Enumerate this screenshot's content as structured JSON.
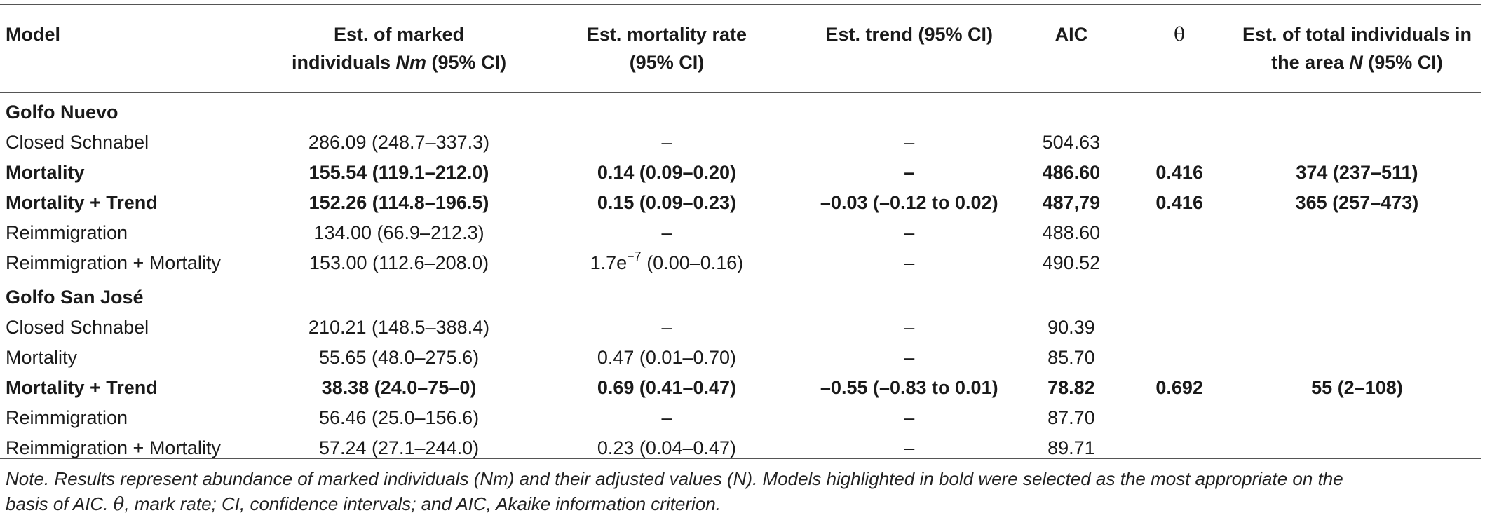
{
  "headers": {
    "model": "Model",
    "nm_line1": "Est. of marked",
    "nm_line2a": "individuals ",
    "nm_line2b": "Nm",
    "nm_line2c": " (95% CI)",
    "mort_line1": "Est. mortality rate",
    "mort_line2": "(95% CI)",
    "trend": "Est. trend (95% CI)",
    "aic": "AIC",
    "theta": "θ",
    "total_line1": "Est. of total individuals in",
    "total_line2a": "the area ",
    "total_line2b": "N",
    "total_line2c": " (95% CI)"
  },
  "groups": [
    {
      "name": "Golfo Nuevo",
      "rows": [
        {
          "model": "Closed Schnabel",
          "nm": "286.09 (248.7–337.3)",
          "mort": "–",
          "trend": "–",
          "aic": "504.63",
          "theta": "",
          "total": ""
        },
        {
          "model": "Mortality",
          "nm": "155.54 (119.1–212.0)",
          "mort": "0.14 (0.09–0.20)",
          "trend": "–",
          "aic": "486.60",
          "theta": "0.416",
          "total": "374 (237–511)"
        },
        {
          "model": "Mortality + Trend",
          "nm": "152.26 (114.8–196.5)",
          "mort": "0.15 (0.09–0.23)",
          "trend": "–0.03 (–0.12 to 0.02)",
          "aic": "487,79",
          "theta": "0.416",
          "total": "365 (257–473)"
        },
        {
          "model": "Reimmigration",
          "nm": "134.00 (66.9–212.3)",
          "mort": "–",
          "trend": "–",
          "aic": "488.60",
          "theta": "",
          "total": ""
        },
        {
          "model": "Reimmigration + Mortality",
          "nm": "153.00 (112.6–208.0)",
          "mort_base": "1.7e",
          "mort_sup": "−7",
          "mort_rest": " (0.00–0.16)",
          "trend": "–",
          "aic": "490.52",
          "theta": "",
          "total": ""
        }
      ]
    },
    {
      "name": "Golfo San José",
      "rows": [
        {
          "model": "Closed Schnabel",
          "nm": "210.21 (148.5–388.4)",
          "mort": "–",
          "trend": "–",
          "aic": "90.39",
          "theta": "",
          "total": ""
        },
        {
          "model": "Mortality",
          "nm": "55.65 (48.0–275.6)",
          "mort": "0.47 (0.01–0.70)",
          "trend": "–",
          "aic": "85.70",
          "theta": "",
          "total": ""
        },
        {
          "model": "Mortality + Trend",
          "nm": "38.38 (24.0–75–0)",
          "mort": "0.69 (0.41–0.47)",
          "trend": "–0.55 (–0.83 to 0.01)",
          "aic": "78.82",
          "theta": "0.692",
          "total": "55 (2–108)"
        },
        {
          "model": "Reimmigration",
          "nm": "56.46 (25.0–156.6)",
          "mort": "–",
          "trend": "–",
          "aic": "87.70",
          "theta": "",
          "total": ""
        },
        {
          "model": "Reimmigration + Mortality",
          "nm": "57.24 (27.1–244.0)",
          "mort": "0.23 (0.04–0.47)",
          "trend": "–",
          "aic": "89.71",
          "theta": "",
          "total": ""
        }
      ]
    }
  ],
  "note": {
    "line1": "Note. Results represent abundance of marked individuals (Nm) and their adjusted values (N). Models highlighted in bold were selected as the most appropriate on the",
    "line2a": "basis of AIC. ",
    "line2theta": "θ",
    "line2b": ", mark rate; CI, confidence intervals; and AIC, Akaike information criterion."
  }
}
